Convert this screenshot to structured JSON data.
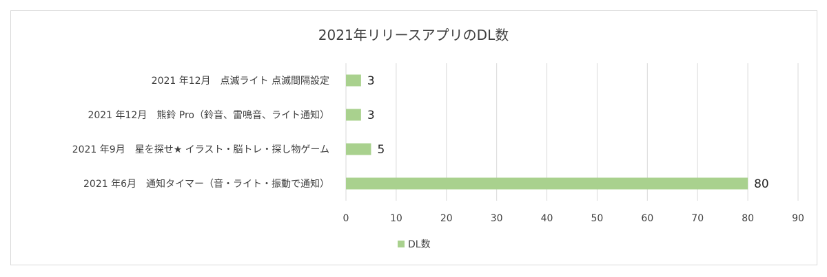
{
  "chart_data": {
    "type": "bar",
    "orientation": "horizontal",
    "title": "2021年リリースアプリのDL数",
    "categories": [
      "2021 年12月　点滅ライト 点滅間隔設定",
      "2021 年12月　熊鈴 Pro（鈴音、雷鳴音、ライト通知）",
      "2021 年9月　星を探せ★ イラスト・脳トレ・探し物ゲーム",
      "2021 年6月　通知タイマー（音・ライト・振動で通知）"
    ],
    "series": [
      {
        "name": "DL数",
        "values": [
          3,
          3,
          5,
          80
        ],
        "color": "#a9d18e"
      }
    ],
    "xlim": [
      0,
      90
    ],
    "xticks": [
      0,
      10,
      20,
      30,
      40,
      50,
      60,
      70,
      80,
      90
    ],
    "grid": true,
    "data_labels": true,
    "legend_position": "bottom",
    "gridline_color": "#d9d9d9",
    "border_color": "#d9d9d9"
  }
}
